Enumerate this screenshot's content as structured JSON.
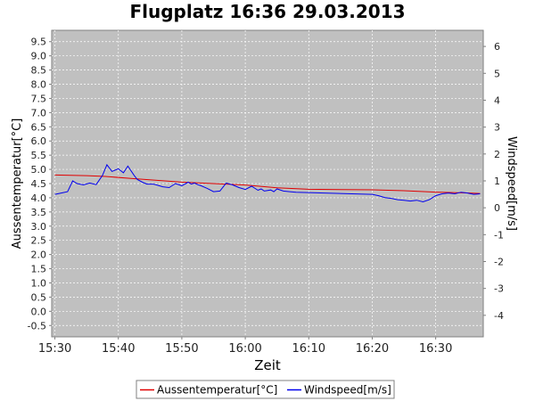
{
  "chart_data": {
    "type": "line",
    "title": "Flugplatz 16:36 29.03.2013",
    "xlabel": "Zeit",
    "ylabel_left": "Aussentemperatur[°C]",
    "ylabel_right": "Windspeed[m/s]",
    "x_ticks": [
      "15:30",
      "15:40",
      "15:50",
      "16:00",
      "16:10",
      "16:20",
      "16:30"
    ],
    "x_tick_minutes": [
      0,
      10,
      20,
      30,
      40,
      50,
      60
    ],
    "xlim_minutes": [
      -0.5,
      67.5
    ],
    "y_left_ticks": [
      "9.5",
      "9.0",
      "8.5",
      "8.0",
      "7.5",
      "7.0",
      "6.5",
      "6.0",
      "5.5",
      "5.0",
      "4.5",
      "4.0",
      "3.5",
      "3.0",
      "2.5",
      "2.0",
      "1.5",
      "1.0",
      "0.5",
      "0.0",
      "-0.5"
    ],
    "y_left_lim": [
      -0.9,
      9.9
    ],
    "y_right_ticks": [
      "6",
      "5",
      "4",
      "3",
      "2",
      "1",
      "0",
      "-1",
      "-2",
      "-3",
      "-4"
    ],
    "y_right_lim": [
      -4.8,
      6.6
    ],
    "grid": true,
    "background_color": "#c0c0c0",
    "legend_position": "bottom",
    "series": [
      {
        "name": "Aussentemperatur[°C]",
        "axis": "left",
        "color": "#e00000",
        "x": [
          0,
          5,
          8,
          12,
          20,
          30,
          35,
          40,
          50,
          55,
          60,
          65,
          67
        ],
        "values": [
          4.8,
          4.78,
          4.75,
          4.68,
          4.55,
          4.45,
          4.35,
          4.3,
          4.28,
          4.25,
          4.2,
          4.17,
          4.15
        ]
      },
      {
        "name": "Windspeed[m/s]",
        "axis": "right",
        "color": "#0000ee",
        "x": [
          0,
          1,
          2,
          2.8,
          3.5,
          4.5,
          5.5,
          6.5,
          7.5,
          8.2,
          9,
          10,
          10.8,
          11.5,
          12.5,
          13,
          13.8,
          14.5,
          15.5,
          16,
          17,
          18,
          19,
          20,
          21,
          21.5,
          22,
          22.5,
          23,
          24,
          25,
          26,
          27,
          28,
          29,
          30,
          31,
          32,
          32.5,
          33,
          34,
          34.5,
          35,
          36,
          37,
          38,
          50,
          51,
          52,
          53,
          54,
          55,
          56,
          57,
          58,
          59,
          60,
          61,
          62,
          63,
          64,
          65,
          66,
          67
        ],
        "values": [
          0.5,
          0.55,
          0.6,
          1.0,
          0.9,
          0.85,
          0.92,
          0.86,
          1.2,
          1.6,
          1.35,
          1.45,
          1.3,
          1.55,
          1.2,
          1.05,
          0.95,
          0.88,
          0.88,
          0.85,
          0.78,
          0.75,
          0.9,
          0.82,
          0.95,
          0.88,
          0.92,
          0.86,
          0.82,
          0.72,
          0.6,
          0.62,
          0.92,
          0.85,
          0.75,
          0.68,
          0.8,
          0.65,
          0.7,
          0.62,
          0.66,
          0.6,
          0.7,
          0.62,
          0.6,
          0.58,
          0.5,
          0.45,
          0.38,
          0.35,
          0.3,
          0.28,
          0.25,
          0.28,
          0.22,
          0.3,
          0.45,
          0.52,
          0.55,
          0.52,
          0.58,
          0.55,
          0.5,
          0.52
        ]
      }
    ]
  }
}
